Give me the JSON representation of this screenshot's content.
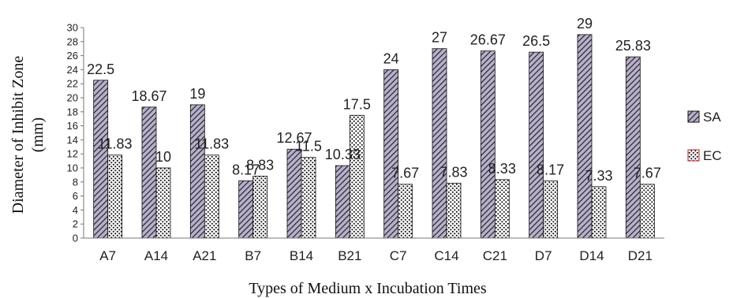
{
  "chart_data": {
    "type": "bar",
    "categories": [
      "A7",
      "A14",
      "A21",
      "B7",
      "B14",
      "B21",
      "C7",
      "C14",
      "C21",
      "D7",
      "D14",
      "D21"
    ],
    "series": [
      {
        "name": "SA",
        "values": [
          22.5,
          18.67,
          19,
          8.17,
          12.67,
          10.33,
          24,
          27,
          26.67,
          26.5,
          29,
          25.83
        ],
        "labels": [
          "22.5",
          "18.67",
          "19",
          "8.17",
          "12.67",
          "10.33",
          "24",
          "27",
          "26.67",
          "26.5",
          "29",
          "25.83"
        ],
        "pattern": "diagonal-hatch",
        "color": "#b3aac8"
      },
      {
        "name": "EC",
        "values": [
          11.83,
          10,
          11.83,
          8.83,
          11.5,
          17.5,
          7.67,
          7.83,
          8.33,
          8.17,
          7.33,
          7.67
        ],
        "labels": [
          "11.83",
          "10",
          "11.83",
          "8.83",
          "11.5",
          "17.5",
          "7.67",
          "7.83",
          "8.33",
          "8.17",
          "7.33",
          "7.67"
        ],
        "pattern": "dots",
        "color": "#e06060"
      }
    ],
    "xlabel": "Types  of Medium x Incubation Times",
    "ylabel": [
      "Diameter of Inhibit Zone",
      "(mm)"
    ],
    "ylim": [
      0,
      30
    ],
    "yticks": [
      0,
      2,
      4,
      6,
      8,
      10,
      12,
      14,
      16,
      18,
      20,
      22,
      24,
      26,
      28,
      30
    ],
    "grid": false,
    "legend_position": "right"
  }
}
